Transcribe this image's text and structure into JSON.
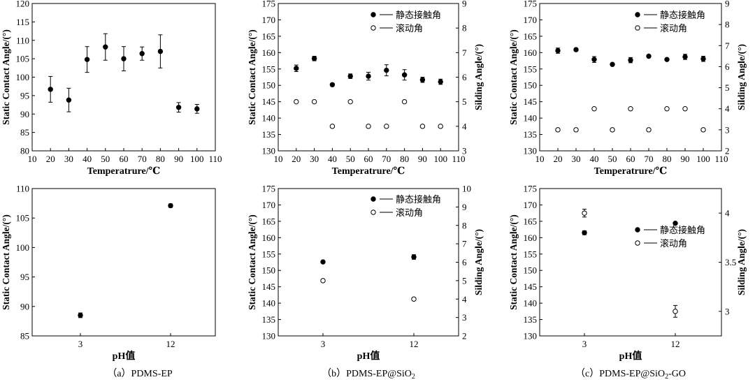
{
  "captions": [
    {
      "prefix": "（a）PDMS-EP",
      "sub": "",
      "suffix": ""
    },
    {
      "prefix": "（b）PDMS-EP@SiO",
      "sub": "2",
      "suffix": ""
    },
    {
      "prefix": "（c）PDMS-EP@SiO",
      "sub": "2",
      "suffix": "-GO"
    }
  ],
  "colors": {
    "axis": "#000000",
    "marker": "#000000",
    "background": "#ffffff"
  },
  "chart_data": [
    {
      "id": "a-temp",
      "type": "scatter",
      "xlabel": "Temperatrure/℃",
      "ylabel": "Static Contact Angle/(°)",
      "xlim": [
        10,
        110
      ],
      "ylim": [
        80,
        120
      ],
      "xticks": [
        10,
        20,
        30,
        40,
        50,
        60,
        70,
        80,
        90,
        100,
        110
      ],
      "yticks": [
        80,
        85,
        90,
        95,
        100,
        105,
        110,
        115,
        120
      ],
      "series": [
        {
          "axis": "left",
          "marker": "filled",
          "x": [
            20,
            30,
            40,
            50,
            60,
            70,
            80,
            90,
            100
          ],
          "y": [
            96.7,
            93.8,
            104.8,
            108.2,
            105.0,
            106.4,
            107.0,
            91.8,
            91.4
          ],
          "err": [
            3.5,
            3.2,
            3.5,
            3.6,
            3.3,
            1.8,
            4.5,
            1.3,
            1.2
          ]
        }
      ]
    },
    {
      "id": "b-temp",
      "type": "scatter",
      "xlabel": "Temperatrure/℃",
      "ylabel": "Static Contact Angle/(°)",
      "y2label": "Silding Angle/(°)",
      "xlim": [
        10,
        110
      ],
      "ylim": [
        130,
        175
      ],
      "y2lim": [
        3,
        9
      ],
      "xticks": [
        10,
        20,
        30,
        40,
        50,
        60,
        70,
        80,
        90,
        100,
        110
      ],
      "yticks": [
        130,
        135,
        140,
        145,
        150,
        155,
        160,
        165,
        170,
        175
      ],
      "y2ticks": [
        3,
        4,
        5,
        6,
        7,
        8,
        9
      ],
      "legend": [
        "静态接触角",
        "滚动角"
      ],
      "series": [
        {
          "name": "静态接触角",
          "axis": "left",
          "marker": "filled",
          "x": [
            20,
            30,
            40,
            50,
            60,
            70,
            80,
            90,
            100
          ],
          "y": [
            155.2,
            158.2,
            150.2,
            152.8,
            152.8,
            154.6,
            153.2,
            151.7,
            151.1
          ],
          "err": [
            1.0,
            0.7,
            0.4,
            0.7,
            1.2,
            1.7,
            1.6,
            0.8,
            0.8
          ]
        },
        {
          "name": "滚动角",
          "axis": "right",
          "marker": "open",
          "x": [
            20,
            30,
            40,
            50,
            60,
            70,
            80,
            90,
            100
          ],
          "y": [
            5,
            5,
            4,
            5,
            4,
            4,
            5,
            4,
            4
          ]
        }
      ]
    },
    {
      "id": "c-temp",
      "type": "scatter",
      "xlabel": "Temperatrure/℃",
      "ylabel": "Static Contact Angle/(°)",
      "y2label": "Silding Angle/(°)",
      "xlim": [
        10,
        110
      ],
      "ylim": [
        130,
        175
      ],
      "y2lim": [
        2,
        9
      ],
      "xticks": [
        10,
        20,
        30,
        40,
        50,
        60,
        70,
        80,
        90,
        100,
        110
      ],
      "yticks": [
        130,
        135,
        140,
        145,
        150,
        155,
        160,
        165,
        170,
        175
      ],
      "y2ticks": [
        2,
        3,
        4,
        5,
        6,
        7,
        8,
        9
      ],
      "legend": [
        "静态接触角",
        "滚动角"
      ],
      "series": [
        {
          "name": "静态接触角",
          "axis": "left",
          "marker": "filled",
          "x": [
            20,
            30,
            40,
            50,
            60,
            70,
            80,
            90,
            100
          ],
          "y": [
            160.6,
            160.9,
            157.9,
            156.4,
            157.7,
            158.9,
            157.9,
            158.7,
            158.1
          ],
          "err": [
            0.8,
            0.4,
            0.9,
            0.3,
            0.8,
            0.4,
            0.3,
            0.8,
            0.8
          ]
        },
        {
          "name": "滚动角",
          "axis": "right",
          "marker": "open",
          "x": [
            20,
            30,
            40,
            50,
            60,
            70,
            80,
            90,
            100
          ],
          "y": [
            3,
            3,
            4,
            3,
            4,
            3,
            4,
            4,
            3
          ]
        }
      ]
    },
    {
      "id": "a-ph",
      "type": "scatter",
      "xlabel": "pH值",
      "ylabel": "Static Contact Angle/(°)",
      "xcategories": [
        "3",
        "12"
      ],
      "ylim": [
        85,
        110
      ],
      "yticks": [
        85,
        90,
        95,
        100,
        105,
        110
      ],
      "series": [
        {
          "axis": "left",
          "marker": "filled",
          "x": [
            "3",
            "12"
          ],
          "y": [
            88.5,
            107.1
          ],
          "err": [
            0.4,
            0.3
          ]
        }
      ]
    },
    {
      "id": "b-ph",
      "type": "scatter",
      "xlabel": "pH值",
      "ylabel": "Static Contact Angle/(°)",
      "y2label": "Silding Angle/(°)",
      "xcategories": [
        "3",
        "12"
      ],
      "ylim": [
        130,
        175
      ],
      "y2lim": [
        2,
        10
      ],
      "yticks": [
        130,
        135,
        140,
        145,
        150,
        155,
        160,
        165,
        170,
        175
      ],
      "y2ticks": [
        2,
        3,
        4,
        5,
        6,
        7,
        8,
        9,
        10
      ],
      "legend": [
        "静态接触角",
        "滚动角"
      ],
      "series": [
        {
          "name": "静态接触角",
          "axis": "left",
          "marker": "filled",
          "x": [
            "3",
            "12"
          ],
          "y": [
            152.6,
            154.1
          ],
          "err": [
            0.3,
            0.7
          ]
        },
        {
          "name": "滚动角",
          "axis": "right",
          "marker": "open",
          "x": [
            "3",
            "12"
          ],
          "y": [
            5,
            4
          ]
        }
      ]
    },
    {
      "id": "c-ph",
      "type": "scatter",
      "xlabel": "pH值",
      "ylabel": "Static Contact Angle/(°)",
      "y2label": "Silding Angle/(°)",
      "xcategories": [
        "3",
        "12"
      ],
      "ylim": [
        130,
        175
      ],
      "y2lim": [
        2.75,
        4.25
      ],
      "yticks": [
        130,
        135,
        140,
        145,
        150,
        155,
        160,
        165,
        170,
        175
      ],
      "y2ticks": [
        3.0,
        3.5,
        4.0
      ],
      "legend": [
        "静态接触角",
        "滚动角"
      ],
      "series": [
        {
          "name": "静态接触角",
          "axis": "left",
          "marker": "filled",
          "x": [
            "3",
            "12"
          ],
          "y": [
            161.5,
            164.4
          ],
          "err": [
            0.6,
            0.2
          ]
        },
        {
          "name": "滚动角",
          "axis": "right",
          "marker": "open",
          "x": [
            "3",
            "12"
          ],
          "y": [
            4.0,
            3.0
          ],
          "err": [
            0.04,
            0.06
          ]
        }
      ]
    }
  ]
}
